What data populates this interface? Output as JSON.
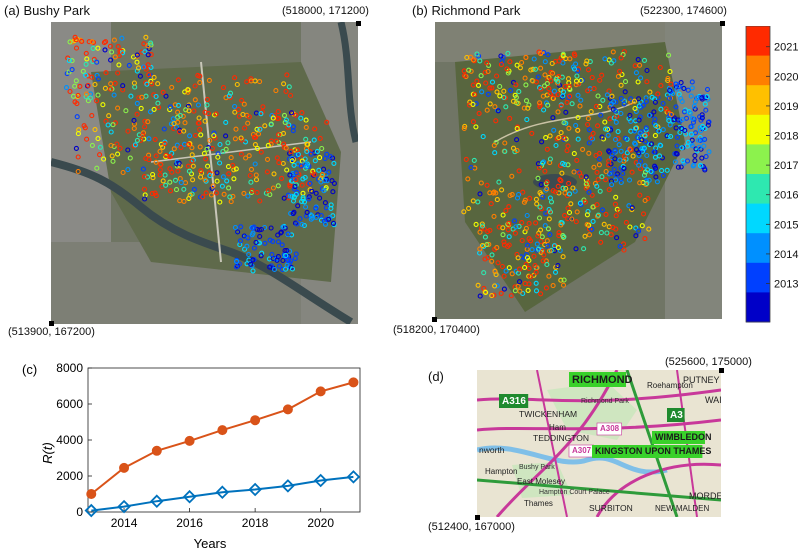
{
  "panel_a": {
    "label": "(a) Bushy Park",
    "coord_top_right": "(518000, 171200)",
    "coord_bottom_left": "(513900, 167200)"
  },
  "panel_b": {
    "label": "(b) Richmond Park",
    "coord_top_right": "(522300, 174600)",
    "coord_bottom_left": "(518200, 170400)"
  },
  "panel_d": {
    "label": "(d)",
    "coord_top_right": "(525600, 175000)",
    "coord_bottom_left": "(512400, 167000)",
    "place_labels": [
      "RICHMOND",
      "Roehampton",
      "PUTNEY",
      "A316",
      "TWICKENHAM",
      "Richmond Park",
      "A3",
      "WAI",
      "Ham",
      "A308",
      "WIMBLEDON",
      "nworth",
      "TEDDINGTON",
      "A307",
      "KINGSTON UPON THAMES",
      "Hampton",
      "Bushy Park",
      "Hampton Court Palace",
      "East Molesey",
      "Thames",
      "SURBITON",
      "NEW MALDEN",
      "MORDEN"
    ]
  },
  "colorbar": {
    "ticks": [
      "2021",
      "2020",
      "2019",
      "2018",
      "2017",
      "2016",
      "2015",
      "2014",
      "2013"
    ],
    "colors": [
      "#ff2a00",
      "#ff7f00",
      "#ffc000",
      "#f2ff00",
      "#8cf24d",
      "#2ee8b0",
      "#00d8ff",
      "#0090ff",
      "#0040ff",
      "#0000c8"
    ]
  },
  "chart_data": {
    "type": "line",
    "panel_label": "(c)",
    "xlabel": "Years",
    "ylabel": "R(t)",
    "xlim": [
      2012.9,
      2021.2
    ],
    "ylim": [
      0,
      8000
    ],
    "xticks": [
      2014,
      2016,
      2018,
      2020
    ],
    "yticks": [
      0,
      2000,
      4000,
      6000,
      8000
    ],
    "grid": false,
    "x": [
      2013,
      2014,
      2015,
      2016,
      2017,
      2018,
      2019,
      2020,
      2021
    ],
    "series": [
      {
        "color": "#d95319",
        "marker": "circle",
        "values": [
          1000,
          2450,
          3400,
          3950,
          4550,
          5100,
          5700,
          6700,
          7200
        ]
      },
      {
        "color": "#0072bd",
        "marker": "diamond",
        "values": [
          80,
          300,
          600,
          850,
          1100,
          1250,
          1450,
          1750,
          1950
        ]
      }
    ]
  }
}
